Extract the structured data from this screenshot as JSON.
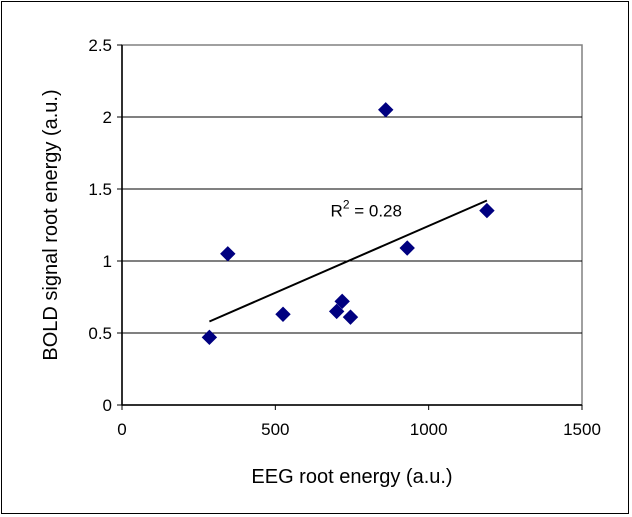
{
  "chart_data": {
    "type": "scatter",
    "title": "",
    "xlabel": "EEG root energy (a.u.)",
    "ylabel": "BOLD signal root energy (a.u.)",
    "xlim": [
      0,
      1500
    ],
    "ylim": [
      0,
      2.5
    ],
    "x_ticks": [
      "0",
      "500",
      "1000",
      "1500"
    ],
    "y_ticks": [
      "0",
      "0.5",
      "1",
      "1.5",
      "2",
      "2.5"
    ],
    "x_tick_values": [
      0,
      500,
      1000,
      1500
    ],
    "y_tick_values": [
      0,
      0.5,
      1,
      1.5,
      2,
      2.5
    ],
    "grid": "horizontal",
    "legend": "none",
    "marker": "diamond",
    "marker_color": "#000080",
    "series": [
      {
        "points": [
          {
            "x": 285,
            "y": 0.47
          },
          {
            "x": 345,
            "y": 1.05
          },
          {
            "x": 525,
            "y": 0.63
          },
          {
            "x": 700,
            "y": 0.65
          },
          {
            "x": 718,
            "y": 0.72
          },
          {
            "x": 745,
            "y": 0.61
          },
          {
            "x": 860,
            "y": 2.05
          },
          {
            "x": 930,
            "y": 1.09
          },
          {
            "x": 1190,
            "y": 1.35
          }
        ]
      }
    ],
    "trendline": {
      "x": [
        285,
        1190
      ],
      "y": [
        0.58,
        1.42
      ]
    },
    "annotation": {
      "text_main": "R",
      "text_sup": "2",
      "text_rest": " = 0.28",
      "x": 680,
      "y": 1.31
    }
  }
}
